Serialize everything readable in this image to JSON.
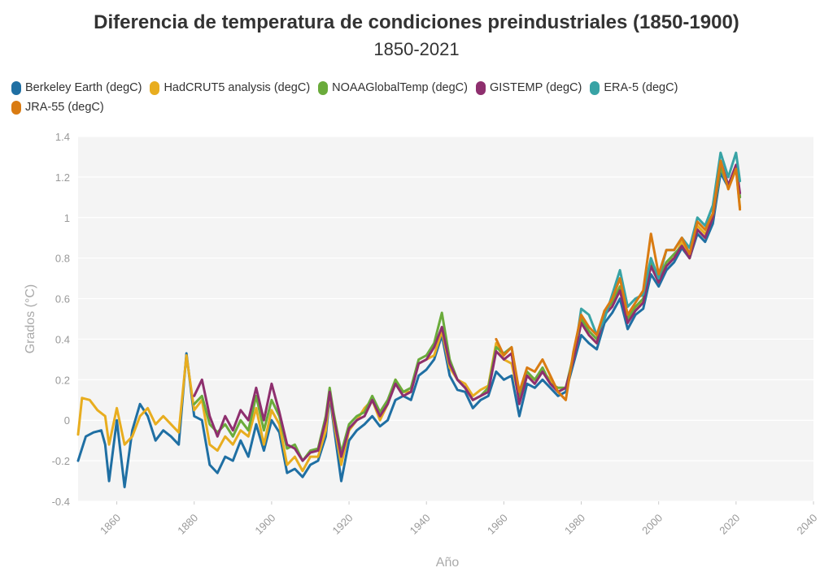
{
  "chart_data": {
    "type": "line",
    "title": "Diferencia de temperatura de condiciones preindustriales (1850-1900)",
    "subtitle": "1850-2021",
    "xlabel": "Año",
    "ylabel": "Grados (°C)",
    "xlim": [
      1850,
      2040
    ],
    "ylim": [
      -0.4,
      1.4
    ],
    "x_ticks": [
      "1860",
      "1880",
      "1900",
      "1920",
      "1940",
      "1960",
      "1980",
      "2000",
      "2020",
      "2040"
    ],
    "y_ticks": [
      "1.4",
      "1.2",
      "1",
      "0.8",
      "0.6",
      "0.4",
      "0.2",
      "0",
      "-0.2",
      "-0.4"
    ],
    "grid": true,
    "legend_position": "top-left",
    "series": [
      {
        "name": "Berkeley Earth (degC)",
        "color": "#1f6fa3",
        "x": [
          1850,
          1852,
          1854,
          1856,
          1857,
          1858,
          1860,
          1862,
          1864,
          1866,
          1868,
          1870,
          1872,
          1874,
          1876,
          1878,
          1880,
          1882,
          1884,
          1886,
          1888,
          1890,
          1892,
          1894,
          1896,
          1898,
          1900,
          1902,
          1904,
          1906,
          1908,
          1910,
          1912,
          1914,
          1915,
          1916,
          1918,
          1920,
          1922,
          1924,
          1926,
          1928,
          1930,
          1932,
          1934,
          1936,
          1938,
          1940,
          1942,
          1944,
          1946,
          1948,
          1950,
          1952,
          1954,
          1956,
          1958,
          1960,
          1962,
          1964,
          1966,
          1968,
          1970,
          1972,
          1974,
          1976,
          1978,
          1980,
          1982,
          1984,
          1986,
          1988,
          1990,
          1992,
          1994,
          1996,
          1998,
          2000,
          2002,
          2004,
          2006,
          2008,
          2010,
          2012,
          2014,
          2016,
          2018,
          2020,
          2021
        ],
        "values": [
          -0.2,
          -0.08,
          -0.06,
          -0.05,
          -0.12,
          -0.3,
          0.0,
          -0.33,
          -0.05,
          0.08,
          0.02,
          -0.1,
          -0.05,
          -0.08,
          -0.12,
          0.33,
          0.02,
          0.0,
          -0.22,
          -0.26,
          -0.18,
          -0.2,
          -0.1,
          -0.18,
          -0.02,
          -0.15,
          0.0,
          -0.06,
          -0.26,
          -0.24,
          -0.28,
          -0.22,
          -0.2,
          -0.08,
          0.12,
          -0.02,
          -0.3,
          -0.1,
          -0.05,
          -0.02,
          0.02,
          -0.03,
          0.0,
          0.1,
          0.12,
          0.1,
          0.22,
          0.25,
          0.3,
          0.42,
          0.22,
          0.15,
          0.14,
          0.06,
          0.1,
          0.12,
          0.24,
          0.2,
          0.22,
          0.02,
          0.18,
          0.16,
          0.2,
          0.16,
          0.12,
          0.14,
          0.28,
          0.42,
          0.38,
          0.35,
          0.48,
          0.53,
          0.6,
          0.45,
          0.52,
          0.55,
          0.72,
          0.66,
          0.74,
          0.78,
          0.85,
          0.8,
          0.92,
          0.88,
          0.97,
          1.22,
          1.15,
          1.25,
          1.1
        ]
      },
      {
        "name": "HadCRUT5 analysis (degC)",
        "color": "#e8ad1f",
        "x": [
          1850,
          1851,
          1853,
          1855,
          1857,
          1858,
          1860,
          1862,
          1864,
          1866,
          1868,
          1870,
          1872,
          1874,
          1876,
          1878,
          1880,
          1882,
          1884,
          1886,
          1888,
          1890,
          1892,
          1894,
          1896,
          1898,
          1900,
          1902,
          1904,
          1906,
          1908,
          1910,
          1912,
          1914,
          1915,
          1916,
          1918,
          1920,
          1922,
          1924,
          1926,
          1928,
          1930,
          1932,
          1934,
          1936,
          1938,
          1940,
          1942,
          1944,
          1946,
          1948,
          1950,
          1952,
          1954,
          1956,
          1958,
          1960,
          1962,
          1964,
          1966,
          1968,
          1970,
          1972,
          1974,
          1976,
          1978,
          1980,
          1982,
          1984,
          1986,
          1988,
          1990,
          1992,
          1994,
          1996,
          1998,
          2000,
          2002,
          2004,
          2006,
          2008,
          2010,
          2012,
          2014,
          2016,
          2018,
          2020,
          2021
        ],
        "values": [
          -0.07,
          0.11,
          0.1,
          0.05,
          0.02,
          -0.12,
          0.06,
          -0.12,
          -0.08,
          0.02,
          0.06,
          -0.02,
          0.02,
          -0.02,
          -0.06,
          0.32,
          0.05,
          0.1,
          -0.12,
          -0.15,
          -0.08,
          -0.12,
          -0.05,
          -0.08,
          0.06,
          -0.12,
          0.05,
          -0.02,
          -0.22,
          -0.18,
          -0.25,
          -0.18,
          -0.18,
          -0.05,
          0.14,
          0.0,
          -0.22,
          -0.05,
          0.0,
          0.06,
          0.1,
          0.0,
          0.08,
          0.2,
          0.14,
          0.14,
          0.28,
          0.3,
          0.32,
          0.44,
          0.26,
          0.2,
          0.18,
          0.12,
          0.15,
          0.17,
          0.38,
          0.3,
          0.28,
          0.1,
          0.22,
          0.2,
          0.24,
          0.2,
          0.14,
          0.16,
          0.3,
          0.48,
          0.42,
          0.38,
          0.52,
          0.58,
          0.65,
          0.5,
          0.55,
          0.6,
          0.78,
          0.68,
          0.78,
          0.8,
          0.88,
          0.82,
          0.96,
          0.92,
          1.0,
          1.25,
          1.15,
          1.24,
          1.05
        ]
      },
      {
        "name": "NOAAGlobalTemp (degC)",
        "color": "#6aab3b",
        "x": [
          1880,
          1882,
          1884,
          1886,
          1888,
          1890,
          1892,
          1894,
          1896,
          1898,
          1900,
          1902,
          1904,
          1906,
          1908,
          1910,
          1912,
          1914,
          1915,
          1916,
          1918,
          1920,
          1922,
          1924,
          1926,
          1928,
          1930,
          1932,
          1934,
          1936,
          1938,
          1940,
          1942,
          1944,
          1946,
          1948,
          1950,
          1952,
          1954,
          1956,
          1958,
          1960,
          1962,
          1964,
          1966,
          1968,
          1970,
          1972,
          1974,
          1976,
          1978,
          1980,
          1982,
          1984,
          1986,
          1988,
          1990,
          1992,
          1994,
          1996,
          1998,
          2000,
          2002,
          2004,
          2006,
          2008,
          2010,
          2012,
          2014,
          2016,
          2018,
          2020,
          2021
        ],
        "values": [
          0.08,
          0.12,
          -0.02,
          -0.06,
          -0.02,
          -0.08,
          0.0,
          -0.05,
          0.12,
          -0.05,
          0.1,
          0.02,
          -0.14,
          -0.12,
          -0.2,
          -0.15,
          -0.14,
          0.02,
          0.16,
          0.04,
          -0.16,
          -0.02,
          0.02,
          0.04,
          0.12,
          0.04,
          0.1,
          0.2,
          0.14,
          0.16,
          0.3,
          0.32,
          0.38,
          0.53,
          0.3,
          0.2,
          0.16,
          0.1,
          0.12,
          0.16,
          0.36,
          0.33,
          0.36,
          0.12,
          0.24,
          0.2,
          0.26,
          0.18,
          0.16,
          0.16,
          0.32,
          0.5,
          0.44,
          0.4,
          0.54,
          0.58,
          0.66,
          0.5,
          0.56,
          0.6,
          0.78,
          0.7,
          0.78,
          0.82,
          0.86,
          0.8,
          0.94,
          0.9,
          1.0,
          1.25,
          1.16,
          1.24,
          1.1
        ]
      },
      {
        "name": "GISTEMP (degC)",
        "color": "#8e2f6e",
        "x": [
          1880,
          1882,
          1884,
          1886,
          1888,
          1890,
          1892,
          1894,
          1896,
          1898,
          1900,
          1902,
          1904,
          1906,
          1908,
          1910,
          1912,
          1914,
          1915,
          1916,
          1918,
          1920,
          1922,
          1924,
          1926,
          1928,
          1930,
          1932,
          1934,
          1936,
          1938,
          1940,
          1942,
          1944,
          1946,
          1948,
          1950,
          1952,
          1954,
          1956,
          1958,
          1960,
          1962,
          1964,
          1966,
          1968,
          1970,
          1972,
          1974,
          1976,
          1978,
          1980,
          1982,
          1984,
          1986,
          1988,
          1990,
          1992,
          1994,
          1996,
          1998,
          2000,
          2002,
          2004,
          2006,
          2008,
          2010,
          2012,
          2014,
          2016,
          2018,
          2020,
          2021
        ],
        "values": [
          0.12,
          0.2,
          0.02,
          -0.08,
          0.02,
          -0.05,
          0.05,
          0.0,
          0.16,
          0.0,
          0.18,
          0.04,
          -0.12,
          -0.14,
          -0.2,
          -0.16,
          -0.15,
          0.0,
          0.14,
          0.02,
          -0.18,
          -0.04,
          0.0,
          0.02,
          0.1,
          0.02,
          0.08,
          0.18,
          0.12,
          0.14,
          0.28,
          0.3,
          0.36,
          0.46,
          0.28,
          0.2,
          0.16,
          0.1,
          0.12,
          0.14,
          0.34,
          0.3,
          0.33,
          0.08,
          0.22,
          0.18,
          0.24,
          0.18,
          0.14,
          0.16,
          0.3,
          0.48,
          0.42,
          0.38,
          0.52,
          0.56,
          0.64,
          0.48,
          0.54,
          0.58,
          0.76,
          0.68,
          0.76,
          0.8,
          0.86,
          0.8,
          0.94,
          0.9,
          1.0,
          1.28,
          1.16,
          1.26,
          1.12
        ]
      },
      {
        "name": "ERA-5 (degC)",
        "color": "#38a3a5",
        "x": [
          1979,
          1980,
          1982,
          1984,
          1986,
          1988,
          1990,
          1992,
          1994,
          1996,
          1998,
          2000,
          2002,
          2004,
          2006,
          2008,
          2010,
          2012,
          2014,
          2016,
          2018,
          2020,
          2021
        ],
        "values": [
          0.42,
          0.55,
          0.52,
          0.42,
          0.5,
          0.62,
          0.74,
          0.56,
          0.6,
          0.62,
          0.8,
          0.7,
          0.84,
          0.84,
          0.9,
          0.85,
          1.0,
          0.96,
          1.06,
          1.32,
          1.2,
          1.32,
          1.18
        ]
      },
      {
        "name": "JRA-55 (degC)",
        "color": "#d97b12",
        "x": [
          1958,
          1960,
          1962,
          1964,
          1966,
          1968,
          1970,
          1972,
          1974,
          1976,
          1978,
          1980,
          1982,
          1984,
          1986,
          1988,
          1990,
          1992,
          1994,
          1996,
          1998,
          2000,
          2002,
          2004,
          2006,
          2008,
          2010,
          2012,
          2014,
          2016,
          2018,
          2020,
          2021
        ],
        "values": [
          0.4,
          0.32,
          0.36,
          0.14,
          0.26,
          0.24,
          0.3,
          0.22,
          0.14,
          0.1,
          0.34,
          0.52,
          0.46,
          0.42,
          0.54,
          0.6,
          0.7,
          0.52,
          0.58,
          0.64,
          0.92,
          0.72,
          0.84,
          0.84,
          0.9,
          0.82,
          0.98,
          0.94,
          1.02,
          1.28,
          1.14,
          1.24,
          1.04
        ]
      }
    ]
  }
}
